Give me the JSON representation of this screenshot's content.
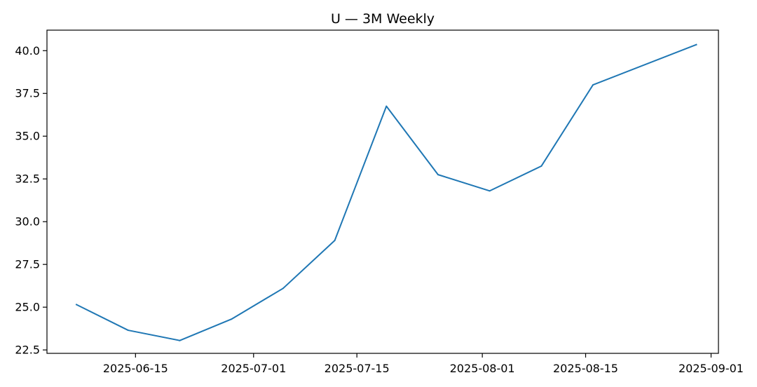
{
  "chart_data": {
    "type": "line",
    "title": "U — 3M Weekly",
    "xlabel": "",
    "ylabel": "",
    "x_axis_kind": "date",
    "xlim": [
      "2025-06-03",
      "2025-09-02"
    ],
    "ylim": [
      22.3,
      41.2
    ],
    "grid": false,
    "x_ticks": [
      {
        "value": "2025-06-15",
        "label": "2025-06-15"
      },
      {
        "value": "2025-07-01",
        "label": "2025-07-01"
      },
      {
        "value": "2025-07-15",
        "label": "2025-07-15"
      },
      {
        "value": "2025-08-01",
        "label": "2025-08-01"
      },
      {
        "value": "2025-08-15",
        "label": "2025-08-15"
      },
      {
        "value": "2025-09-01",
        "label": "2025-09-01"
      }
    ],
    "y_ticks": [
      {
        "value": 22.5,
        "label": "22.5"
      },
      {
        "value": 25.0,
        "label": "25.0"
      },
      {
        "value": 27.5,
        "label": "27.5"
      },
      {
        "value": 30.0,
        "label": "30.0"
      },
      {
        "value": 32.5,
        "label": "32.5"
      },
      {
        "value": 35.0,
        "label": "35.0"
      },
      {
        "value": 37.5,
        "label": "37.5"
      },
      {
        "value": 40.0,
        "label": "40.0"
      }
    ],
    "series": [
      {
        "color": "#1f77b4",
        "points": [
          {
            "x": "2025-06-07",
            "y": 25.15
          },
          {
            "x": "2025-06-14",
            "y": 23.65
          },
          {
            "x": "2025-06-21",
            "y": 23.05
          },
          {
            "x": "2025-06-28",
            "y": 24.3
          },
          {
            "x": "2025-07-05",
            "y": 26.1
          },
          {
            "x": "2025-07-12",
            "y": 28.9
          },
          {
            "x": "2025-07-19",
            "y": 36.75
          },
          {
            "x": "2025-07-26",
            "y": 32.75
          },
          {
            "x": "2025-08-02",
            "y": 31.8
          },
          {
            "x": "2025-08-09",
            "y": 33.25
          },
          {
            "x": "2025-08-16",
            "y": 38.0
          },
          {
            "x": "2025-08-30",
            "y": 40.35
          }
        ]
      }
    ]
  }
}
